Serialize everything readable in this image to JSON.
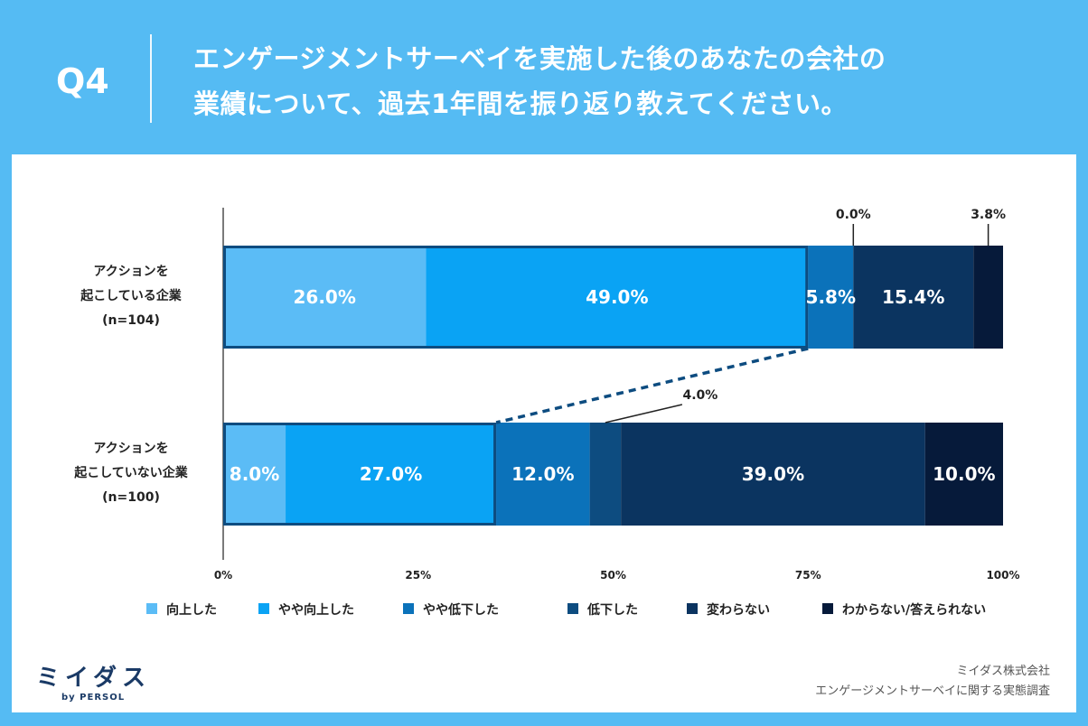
{
  "header": {
    "question_number": "Q4",
    "question_line1": "エンゲージメントサーベイを実施した後のあなたの会社の",
    "question_line2": "業績について、過去1年間を振り返り教えてください。"
  },
  "chart_data": {
    "type": "bar",
    "orientation": "horizontal",
    "stacked": true,
    "categories": [
      {
        "line1": "アクションを",
        "line2": "起こしている企業",
        "line3": "(n=104)"
      },
      {
        "line1": "アクションを",
        "line2": "起こしていない企業",
        "line3": "(n=100)"
      }
    ],
    "series": [
      {
        "name": "向上した",
        "color": "#5bbcf6",
        "values": [
          26.0,
          8.0
        ],
        "labels": [
          "26.0%",
          "8.0%"
        ]
      },
      {
        "name": "やや向上した",
        "color": "#0aa3f4",
        "values": [
          49.0,
          27.0
        ],
        "labels": [
          "49.0%",
          "27.0%"
        ]
      },
      {
        "name": "やや低下した",
        "color": "#0b72ba",
        "values": [
          5.8,
          12.0
        ],
        "labels": [
          "5.8%",
          "12.0%"
        ]
      },
      {
        "name": "低下した",
        "color": "#0d4c80",
        "values": [
          0.0,
          4.0
        ],
        "labels": [
          "0.0%",
          "4.0%"
        ]
      },
      {
        "name": "変わらない",
        "color": "#0b3460",
        "values": [
          15.4,
          39.0
        ],
        "labels": [
          "15.4%",
          "39.0%"
        ]
      },
      {
        "name": "わからない/答えられない",
        "color": "#061a3a",
        "values": [
          3.8,
          10.0
        ],
        "labels": [
          "3.8%",
          "10.0%"
        ]
      }
    ],
    "xlim": [
      0,
      100
    ],
    "xticks": [
      "0%",
      "25%",
      "50%",
      "75%",
      "100%"
    ]
  },
  "footer": {
    "logo": "ミイダス",
    "logo_sub": "by PERSOL",
    "source_line1": "ミイダス株式会社",
    "source_line2": "エンゲージメントサーベイに関する実態調査"
  }
}
